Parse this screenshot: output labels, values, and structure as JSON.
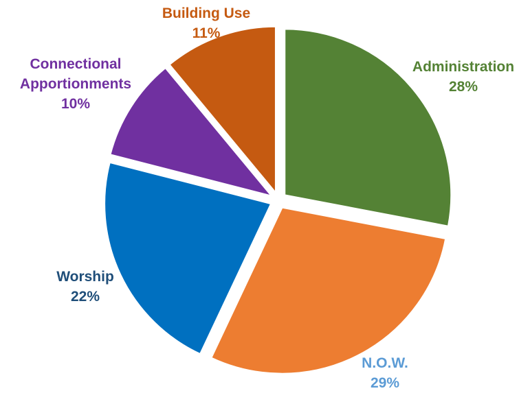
{
  "chart_data": {
    "type": "pie",
    "title": "",
    "slices": [
      {
        "name": "Administration",
        "value": 28,
        "label": "28%",
        "color": "#548235",
        "label_color": "#548235"
      },
      {
        "name": "N.O.W.",
        "value": 29,
        "label": "29%",
        "color": "#ED7D31",
        "label_color": "#5B9BD5"
      },
      {
        "name": "Worship",
        "value": 22,
        "label": "22%",
        "color": "#0070C0",
        "label_color": "#1F4E79"
      },
      {
        "name": "Connectional Apportionments",
        "value": 10,
        "label": "10%",
        "color": "#7030A0",
        "label_color": "#7030A0"
      },
      {
        "name": "Building Use",
        "value": 11,
        "label": "11%",
        "color": "#C55A11",
        "label_color": "#C55A11"
      }
    ],
    "legend": "none",
    "start_angle": "12 o'clock",
    "direction": "clockwise",
    "exploded": true
  }
}
